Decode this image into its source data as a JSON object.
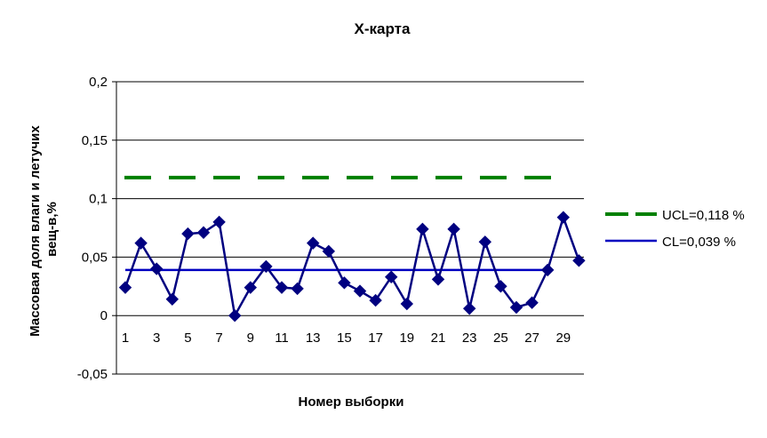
{
  "chart_data": {
    "type": "line",
    "title": "X-карта",
    "xlabel": "Номер выборки",
    "ylabel_lines": [
      "Массовая доля влаги и летучих",
      "вещ-в,%"
    ],
    "ylim": [
      -0.05,
      0.2
    ],
    "yticks": [
      -0.05,
      0,
      0.05,
      0.1,
      0.15,
      0.2
    ],
    "ytick_labels": [
      "-0,05",
      "0",
      "0,05",
      "0,1",
      "0,15",
      "0,2"
    ],
    "xlim": [
      1,
      30
    ],
    "xticks": [
      1,
      3,
      5,
      7,
      9,
      11,
      13,
      15,
      17,
      19,
      21,
      23,
      25,
      27,
      29
    ],
    "xtick_labels": [
      "1",
      "3",
      "5",
      "7",
      "9",
      "11",
      "13",
      "15",
      "17",
      "19",
      "21",
      "23",
      "25",
      "27",
      "29"
    ],
    "grid": "horizontal",
    "legend_position": "right",
    "x": [
      1,
      2,
      3,
      4,
      5,
      6,
      7,
      8,
      9,
      10,
      11,
      12,
      13,
      14,
      15,
      16,
      17,
      18,
      19,
      20,
      21,
      22,
      23,
      24,
      25,
      26,
      27,
      28,
      29,
      30
    ],
    "series": [
      {
        "values": [
          0.024,
          0.062,
          0.04,
          0.014,
          0.07,
          0.071,
          0.08,
          0.0,
          0.024,
          0.042,
          0.024,
          0.023,
          0.062,
          0.055,
          0.028,
          0.021,
          0.013,
          0.033,
          0.01,
          0.074,
          0.031,
          0.074,
          0.006,
          0.063,
          0.025,
          0.007,
          0.011,
          0.039,
          0.084,
          0.047
        ],
        "color": "#000080"
      }
    ],
    "control_lines": [
      {
        "name": "UCL=0,118 %",
        "value": 0.118,
        "x_range": [
          1,
          28
        ],
        "color": "#008000",
        "style": "dashed"
      },
      {
        "name": "CL=0,039 %",
        "value": 0.039,
        "x_range": [
          1,
          28
        ],
        "color": "#0000C0",
        "style": "solid"
      }
    ]
  }
}
